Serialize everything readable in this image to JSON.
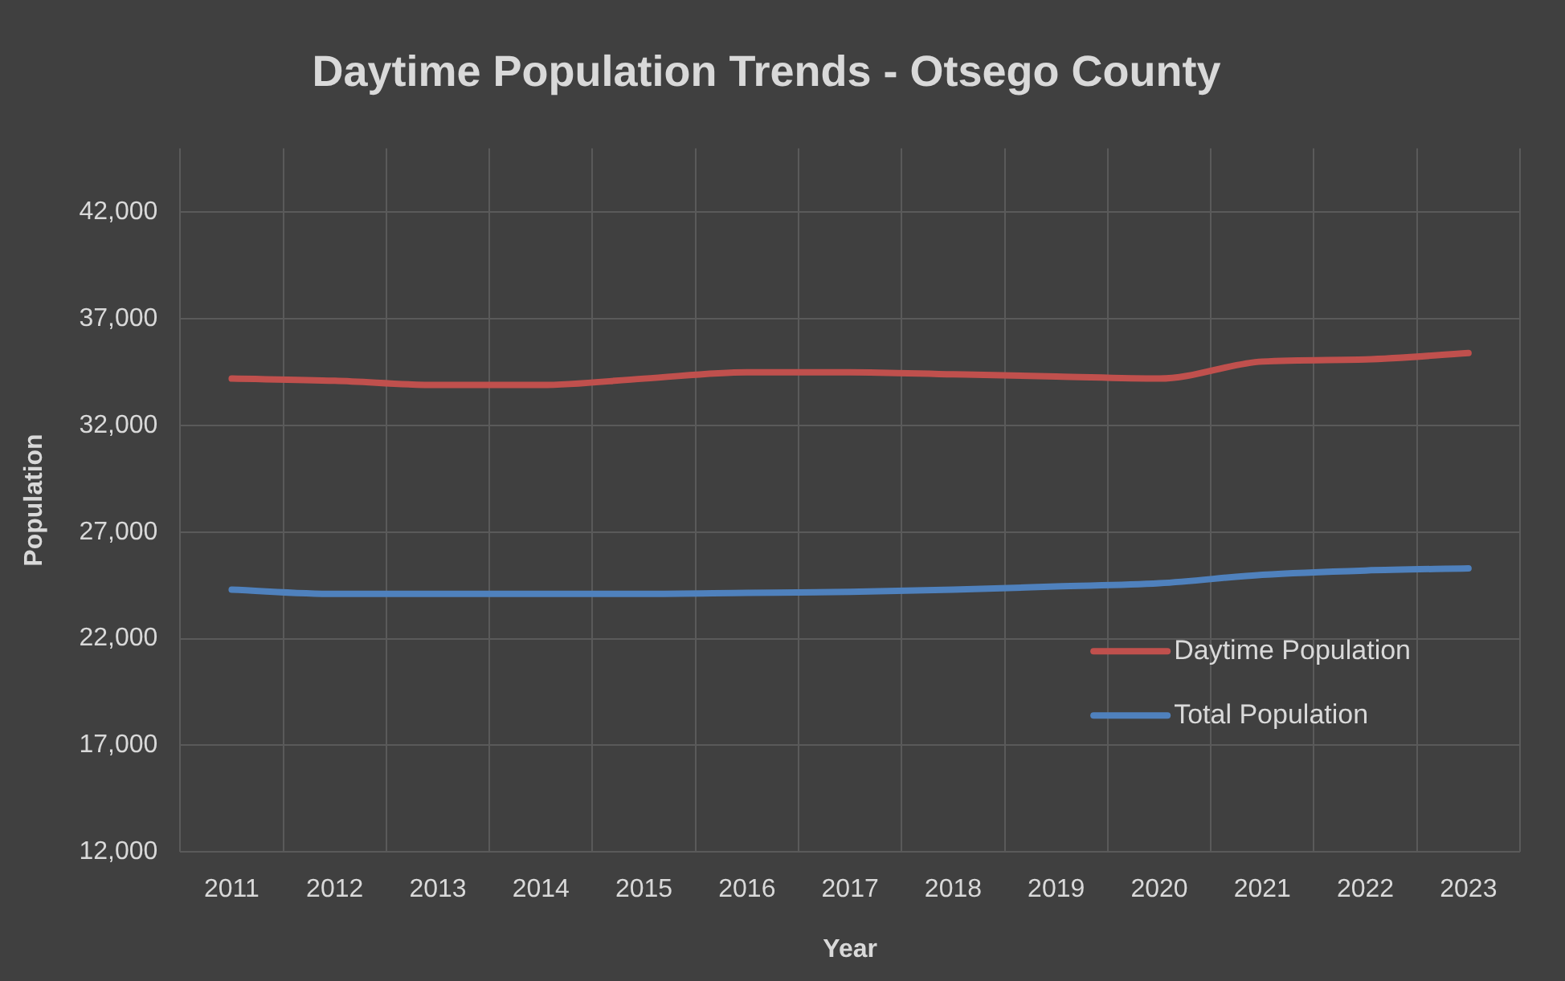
{
  "chart_data": {
    "type": "line",
    "title": "Daytime Population Trends - Otsego County",
    "xlabel": "Year",
    "ylabel": "Population",
    "categories": [
      "2011",
      "2012",
      "2013",
      "2014",
      "2015",
      "2016",
      "2017",
      "2018",
      "2019",
      "2020",
      "2021",
      "2022",
      "2023"
    ],
    "series": [
      {
        "name": "Daytime Population",
        "color": "#c0504d",
        "values": [
          34200,
          34100,
          33900,
          33900,
          34200,
          34500,
          34500,
          34400,
          34300,
          34200,
          35000,
          35100,
          35400
        ]
      },
      {
        "name": "Total Population",
        "color": "#4f81bd",
        "values": [
          24300,
          24100,
          24100,
          24100,
          24100,
          24150,
          24200,
          24300,
          24450,
          24600,
          25000,
          25200,
          25300
        ]
      }
    ],
    "ylim": [
      12000,
      45000
    ],
    "yticks": [
      {
        "value": 12000,
        "label": "12,000"
      },
      {
        "value": 17000,
        "label": "17,000"
      },
      {
        "value": 22000,
        "label": "22,000"
      },
      {
        "value": 27000,
        "label": "27,000"
      },
      {
        "value": 32000,
        "label": "32,000"
      },
      {
        "value": 37000,
        "label": "37,000"
      },
      {
        "value": 42000,
        "label": "42,000"
      }
    ],
    "grid": true,
    "legend": "bottom right",
    "marker": "none",
    "line_style": "solid"
  }
}
